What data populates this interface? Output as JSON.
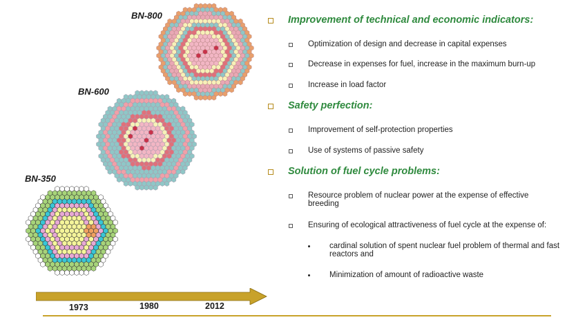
{
  "cores": [
    {
      "label": "BN-800",
      "year": "2012"
    },
    {
      "label": "BN-600",
      "year": "1980"
    },
    {
      "label": "BN-350",
      "year": "1973"
    }
  ],
  "sections": [
    {
      "heading": "Improvement of technical and economic indicators:",
      "items": [
        "Optimization of design and decrease in capital expenses",
        "Decrease in expenses for fuel, increase in the maximum burn-up",
        "Increase in load factor"
      ]
    },
    {
      "heading": "Safety perfection:",
      "items": [
        "Improvement of self-protection properties",
        "Use of systems of passive safety"
      ]
    },
    {
      "heading": "Solution of fuel cycle problems:",
      "items": [
        "Resource problem of nuclear power at the expense of effective breeding",
        "Ensuring of ecological attractiveness of fuel cycle at the expense of:"
      ],
      "subitems": [
        "cardinal solution of spent nuclear fuel problem of thermal and fast reactors and",
        "Minimization of amount of radioactive waste"
      ]
    }
  ],
  "colors": {
    "heading": "#2f8a3e",
    "arrow": "#c8a22a",
    "bullet": "#b58a1a",
    "core_palette_bn800": [
      "#c8324a",
      "#f2b6c4",
      "#e9a8b5",
      "#f7f1b8",
      "#e0707a",
      "#8fc7c7",
      "#e8a06c"
    ],
    "core_palette_bn600": [
      "#c8324a",
      "#f2b6c4",
      "#f7f1b8",
      "#e0707a",
      "#8fc7c7",
      "#f0a0a8"
    ],
    "core_palette_bn350": [
      "#f5f59a",
      "#e7a9d4",
      "#39c6d6",
      "#a7d47a",
      "#ffffff",
      "#f0a060"
    ]
  },
  "icons": {
    "section_bullet": "hollow-square-icon",
    "item_bullet": "small-square-icon",
    "sub_bullet": "dot-icon",
    "timeline": "right-arrow-icon"
  }
}
